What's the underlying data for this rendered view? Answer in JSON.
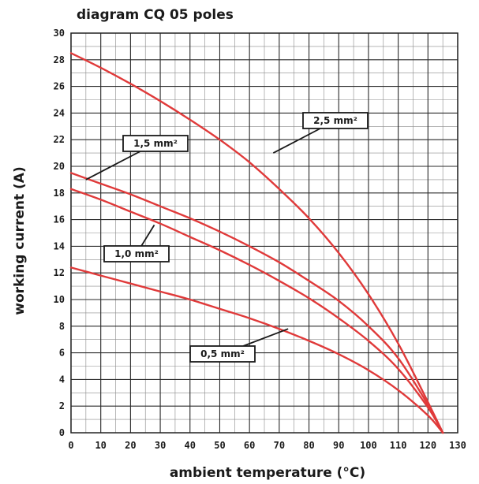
{
  "chart_data": {
    "type": "line",
    "title": "diagram CQ 05 poles",
    "xlabel": "ambient temperature (°C)",
    "ylabel": "working current (A)",
    "xlim": [
      0,
      130
    ],
    "ylim": [
      0,
      30
    ],
    "x_ticks": [
      0,
      10,
      20,
      30,
      40,
      50,
      60,
      70,
      80,
      90,
      100,
      110,
      120,
      130
    ],
    "y_ticks": [
      0,
      2,
      4,
      6,
      8,
      10,
      12,
      14,
      16,
      18,
      20,
      22,
      24,
      26,
      28,
      30
    ],
    "x_tick_labels": [
      "0",
      "10",
      "20",
      "30",
      "40",
      "50",
      "60",
      "70",
      "80",
      "90",
      "100",
      "110",
      "120",
      "130"
    ],
    "y_tick_labels": [
      "0",
      "2",
      "4",
      "6",
      "8",
      "10",
      "12",
      "14",
      "16",
      "18",
      "20",
      "22",
      "24",
      "26",
      "28",
      "30"
    ],
    "grid": true,
    "line_color": "#e03a3a",
    "series": [
      {
        "name": "2,5 mm²",
        "x": [
          0,
          10,
          20,
          30,
          40,
          50,
          60,
          70,
          80,
          90,
          100,
          110,
          120,
          125
        ],
        "y": [
          28.5,
          27.4,
          26.2,
          24.9,
          23.5,
          22.0,
          20.3,
          18.3,
          16.1,
          13.5,
          10.4,
          6.7,
          2.3,
          0
        ],
        "callout": {
          "x": 68,
          "y": 21.0
        }
      },
      {
        "name": "1,5 mm²",
        "x": [
          0,
          10,
          20,
          30,
          40,
          50,
          60,
          70,
          80,
          90,
          100,
          110,
          120,
          125
        ],
        "y": [
          19.5,
          18.7,
          17.9,
          17.0,
          16.1,
          15.1,
          14.0,
          12.8,
          11.4,
          9.9,
          8.0,
          5.6,
          2.1,
          0
        ],
        "callout": {
          "x": 5,
          "y": 19.0
        }
      },
      {
        "name": "1,0 mm²",
        "x": [
          0,
          10,
          20,
          30,
          40,
          50,
          60,
          70,
          80,
          90,
          100,
          110,
          120,
          125
        ],
        "y": [
          18.3,
          17.5,
          16.6,
          15.7,
          14.7,
          13.7,
          12.6,
          11.4,
          10.1,
          8.6,
          6.9,
          4.8,
          1.9,
          0
        ],
        "callout": {
          "x": 28,
          "y": 15.6
        }
      },
      {
        "name": "0,5 mm²",
        "x": [
          0,
          10,
          20,
          30,
          40,
          50,
          60,
          70,
          80,
          90,
          100,
          110,
          120,
          125
        ],
        "y": [
          12.4,
          11.8,
          11.2,
          10.6,
          10.0,
          9.3,
          8.6,
          7.8,
          6.9,
          5.9,
          4.7,
          3.2,
          1.3,
          0
        ],
        "callout": {
          "x": 73,
          "y": 7.8
        }
      }
    ]
  }
}
